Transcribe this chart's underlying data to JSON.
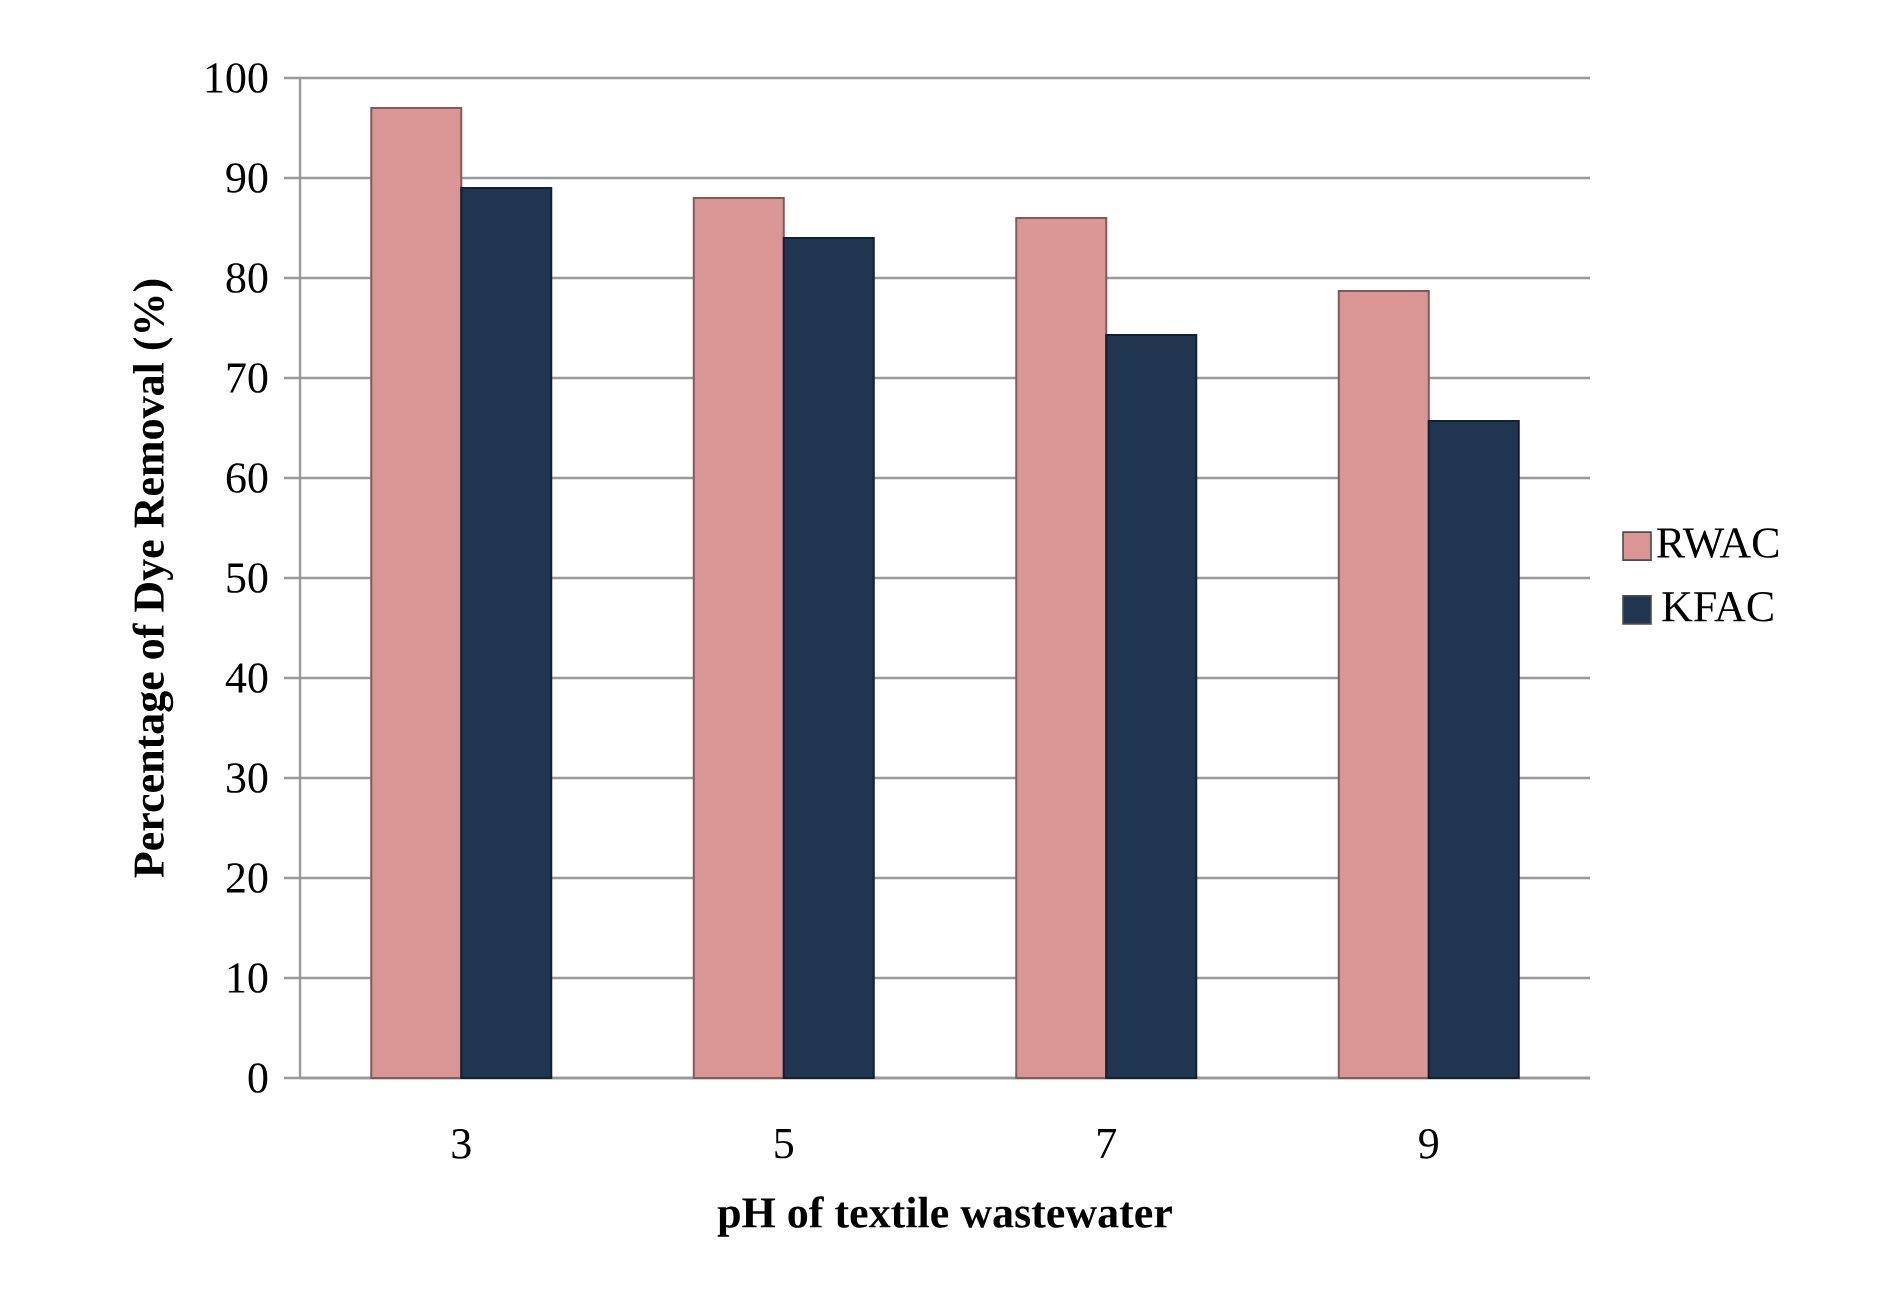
{
  "chart_data": {
    "type": "bar",
    "xlabel": "pH of textile wastewater",
    "ylabel": "Percentage of Dye Removal (%)",
    "categories": [
      "3",
      "5",
      "7",
      "9"
    ],
    "series": [
      {
        "name": "RWAC",
        "color": "#d99694",
        "values": [
          97,
          88,
          86,
          78.7
        ]
      },
      {
        "name": "KFAC",
        "color": "#1f3550",
        "values": [
          89,
          84,
          74.3,
          65.7
        ]
      }
    ],
    "ylim": [
      0,
      100
    ],
    "yticks": [
      0,
      10,
      20,
      30,
      40,
      50,
      60,
      70,
      80,
      90,
      100
    ],
    "grid": "y",
    "legend": "right"
  }
}
